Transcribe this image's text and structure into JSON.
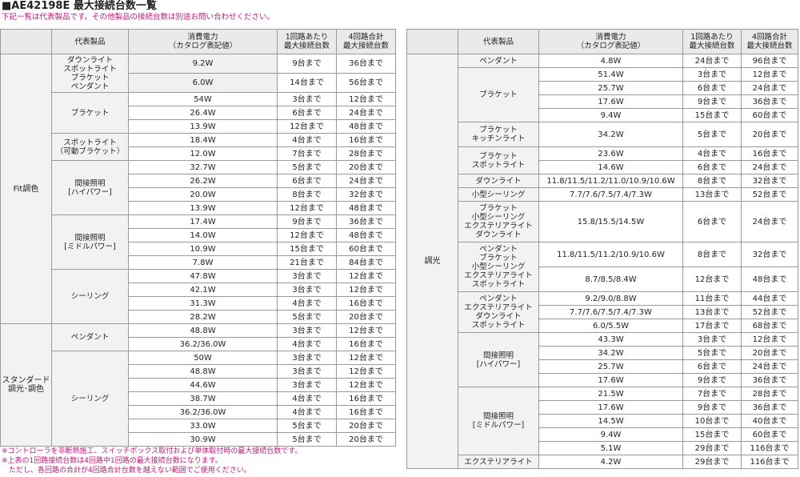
{
  "title": "■AE42198E 最大接続台数一覧",
  "subtitle": "下記一覧は代表製品です。その他製品の接続台数は別途お問い合わせください。",
  "headers": {
    "product": "代表製品",
    "power": "消費電力\n（カタログ表記値）",
    "per_circuit": "1回路あたり\n最大接続台数",
    "total": "4回路合計\n最大接続台数"
  },
  "left_table": [
    {
      "group": "Fit調色",
      "categories": [
        {
          "name": "ダウンライト\nスポットライト\nブラケット\nペンダント",
          "rows": [
            [
              "9.2W",
              "9台まで",
              "36台まで"
            ]
          ],
          "tall": true
        },
        {
          "name": "",
          "rows": [
            [
              "6.0W",
              "14台まで",
              "56台まで"
            ]
          ],
          "tall": true,
          "merge_up": true
        },
        {
          "name": "ブラケット",
          "rows": [
            [
              "54W",
              "3台まで",
              "12台まで"
            ],
            [
              "26.4W",
              "6台まで",
              "24台まで"
            ],
            [
              "13.9W",
              "12台まで",
              "48台まで"
            ]
          ]
        },
        {
          "name": "スポットライト\n（可動ブラケット）",
          "rows": [
            [
              "18.4W",
              "4台まで",
              "16台まで"
            ],
            [
              "12.0W",
              "7台まで",
              "28台まで"
            ]
          ]
        },
        {
          "name": "間接照明\n[ハイパワー]",
          "rows": [
            [
              "32.7W",
              "5台まで",
              "20台まで"
            ],
            [
              "26.2W",
              "6台まで",
              "24台まで"
            ],
            [
              "20.0W",
              "8台まで",
              "32台まで"
            ],
            [
              "13.9W",
              "12台まで",
              "48台まで"
            ]
          ]
        },
        {
          "name": "間接照明\n[ミドルパワー]",
          "rows": [
            [
              "17.4W",
              "9台まで",
              "36台まで"
            ],
            [
              "14.0W",
              "12台まで",
              "48台まで"
            ],
            [
              "10.9W",
              "15台まで",
              "60台まで"
            ],
            [
              "7.8W",
              "21台まで",
              "84台まで"
            ]
          ]
        },
        {
          "name": "シーリング",
          "rows": [
            [
              "47.8W",
              "3台まで",
              "12台まで"
            ],
            [
              "42.1W",
              "3台まで",
              "12台まで"
            ],
            [
              "31.3W",
              "4台まで",
              "16台まで"
            ],
            [
              "28.2W",
              "5台まで",
              "20台まで"
            ]
          ]
        }
      ]
    },
    {
      "group": "スタンダード\n調光･調色",
      "categories": [
        {
          "name": "ペンダント",
          "rows": [
            [
              "48.8W",
              "3台まで",
              "12台まで"
            ],
            [
              "36.2/36.0W",
              "4台まで",
              "16台まで"
            ]
          ]
        },
        {
          "name": "シーリング",
          "rows": [
            [
              "50W",
              "3台まで",
              "12台まで"
            ],
            [
              "48.8W",
              "3台まで",
              "12台まで"
            ],
            [
              "44.6W",
              "3台まで",
              "12台まで"
            ],
            [
              "38.7W",
              "4台まで",
              "16台まで"
            ],
            [
              "36.2/36.0W",
              "4台まで",
              "16台まで"
            ],
            [
              "33.0W",
              "5台まで",
              "20台まで"
            ],
            [
              "30.9W",
              "5台まで",
              "20台まで"
            ]
          ]
        }
      ]
    }
  ],
  "right_table": {
    "group": "調光",
    "rows": [
      {
        "cat": "ペンダント",
        "span": 1,
        "h": 16,
        "power": "4.8W",
        "per": "24台まで",
        "total": "96台まで"
      },
      {
        "cat": "ブラケット",
        "span": 4,
        "h": 16,
        "power": "51.4W",
        "per": "3台まで",
        "total": "12台まで"
      },
      {
        "power": "25.7W",
        "per": "6台まで",
        "total": "24台まで",
        "h": 16
      },
      {
        "power": "17.6W",
        "per": "9台まで",
        "total": "36台まで",
        "h": 16
      },
      {
        "power": "9.4W",
        "per": "15台まで",
        "total": "60台まで",
        "h": 16
      },
      {
        "cat": "ブラケット\nキッチンライト",
        "span": 1,
        "h": 30,
        "power": "34.2W",
        "per": "5台まで",
        "total": "20台まで"
      },
      {
        "cat": "ブラケット\nスポットライト",
        "span": 2,
        "h": 16,
        "power": "23.6W",
        "per": "4台まで",
        "total": "16台まで"
      },
      {
        "power": "14.6W",
        "per": "6台まで",
        "total": "24台まで",
        "h": 16
      },
      {
        "cat": "ダウンライト",
        "span": 1,
        "h": 16,
        "power": "11.8/11.5/11.2/11.0/10.9/10.6W",
        "per": "8台まで",
        "total": "32台まで"
      },
      {
        "cat": "小型シーリング",
        "span": 1,
        "h": 16,
        "power": "7.7/7.6/7.5/7.4/7.3W",
        "per": "13台まで",
        "total": "52台まで"
      },
      {
        "cat": "ブラケット\n小型シーリング\nエクステリアライト\nダウンライト",
        "span": 1,
        "h": 50,
        "power": "15.8/15.5/14.5W",
        "per": "6台まで",
        "total": "24台まで"
      },
      {
        "cat": "ペンダント\nブラケット\n小型シーリング\nエクステリアライト\nスポットライト",
        "span": 2,
        "h": 30,
        "power": "11.8/11.5/11.2/10.9/10.6W",
        "per": "8台まで",
        "total": "32台まで"
      },
      {
        "power": "8.7/8.5/8.4W",
        "per": "12台まで",
        "total": "48台まで",
        "h": 30
      },
      {
        "cat": "ペンダント\nエクステリアライト\nダウンライト\nスポットライト",
        "span": 3,
        "h": 16,
        "power": "9.2/9.0/8.8W",
        "per": "11台まで",
        "total": "44台まで"
      },
      {
        "power": "7.7/7.6/7.5/7.4/7.3W",
        "per": "13台まで",
        "total": "52台まで",
        "h": 16
      },
      {
        "power": "6.0/5.5W",
        "per": "17台まで",
        "total": "68台まで",
        "h": 16
      },
      {
        "cat": "間接照明\n[ハイパワー]",
        "span": 4,
        "h": 16,
        "power": "43.3W",
        "per": "3台まで",
        "total": "12台まで"
      },
      {
        "power": "34.2W",
        "per": "5台まで",
        "total": "20台まで",
        "h": 16
      },
      {
        "power": "25.7W",
        "per": "6台まで",
        "total": "24台まで",
        "h": 16
      },
      {
        "power": "17.6W",
        "per": "9台まで",
        "total": "36台まで",
        "h": 16
      },
      {
        "cat": "間接照明\n[ミドルパワー]",
        "span": 5,
        "h": 16,
        "power": "21.5W",
        "per": "7台まで",
        "total": "28台まで"
      },
      {
        "power": "17.6W",
        "per": "9台まで",
        "total": "36台まで",
        "h": 16
      },
      {
        "power": "14.5W",
        "per": "10台まで",
        "total": "40台まで",
        "h": 16
      },
      {
        "power": "9.4W",
        "per": "15台まで",
        "total": "60台まで",
        "h": 16
      },
      {
        "power": "5.1W",
        "per": "29台まで",
        "total": "116台まで",
        "h": 16
      },
      {
        "cat": "エクステリアライト",
        "span": 1,
        "h": 16,
        "power": "4.2W",
        "per": "29台まで",
        "total": "116台まで"
      }
    ]
  },
  "notes": [
    "※コントローラを非断熱施工、スイッチボックス取付および単体取付時の最大接続台数です。",
    "※上表の1回路接続台数は4回路中1回路の最大接続台数になります。",
    "　ただし、各回路の合計が4回路合計台数を越えない範囲でご使用ください。"
  ]
}
